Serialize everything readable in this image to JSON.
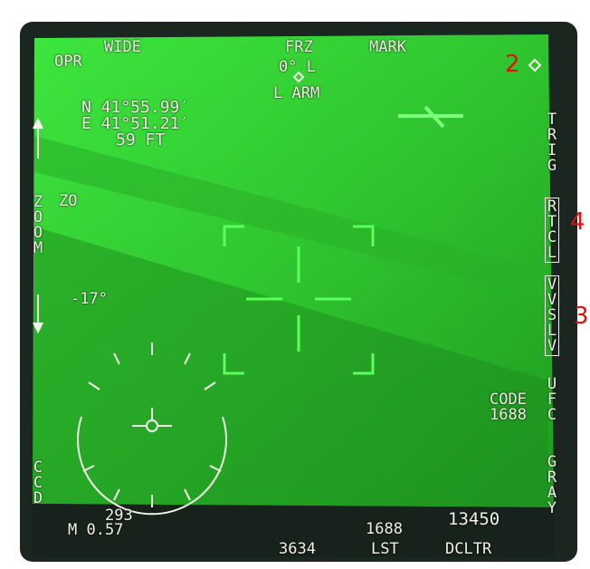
{
  "top": {
    "mode": "OPR",
    "fov": "WIDE",
    "freeze": "FRZ",
    "angle": "0° L",
    "arm": "L ARM",
    "mark": "MARK"
  },
  "coords": {
    "lat": "N 41°55.99′",
    "lon": "E 41°51.21′",
    "elev": "59 FT"
  },
  "left": {
    "zoom": "ZOOM",
    "zoom_level": "ZO",
    "depression": "-17°",
    "sensor": "CCD"
  },
  "right": {
    "trig": "TRIG",
    "rtcl": "RTCL",
    "vvslv": "VVSLV",
    "ufc": "UFC",
    "gray": "GRAY",
    "code_label": "CODE",
    "code": "1688"
  },
  "bottom": {
    "heading": "293",
    "mach": "M 0.57",
    "range": "3634",
    "laser_code": "1688",
    "lst": "LST",
    "altitude": "13450",
    "dcltr": "DCLTR"
  },
  "annotations": [
    "2",
    "4",
    "3"
  ]
}
